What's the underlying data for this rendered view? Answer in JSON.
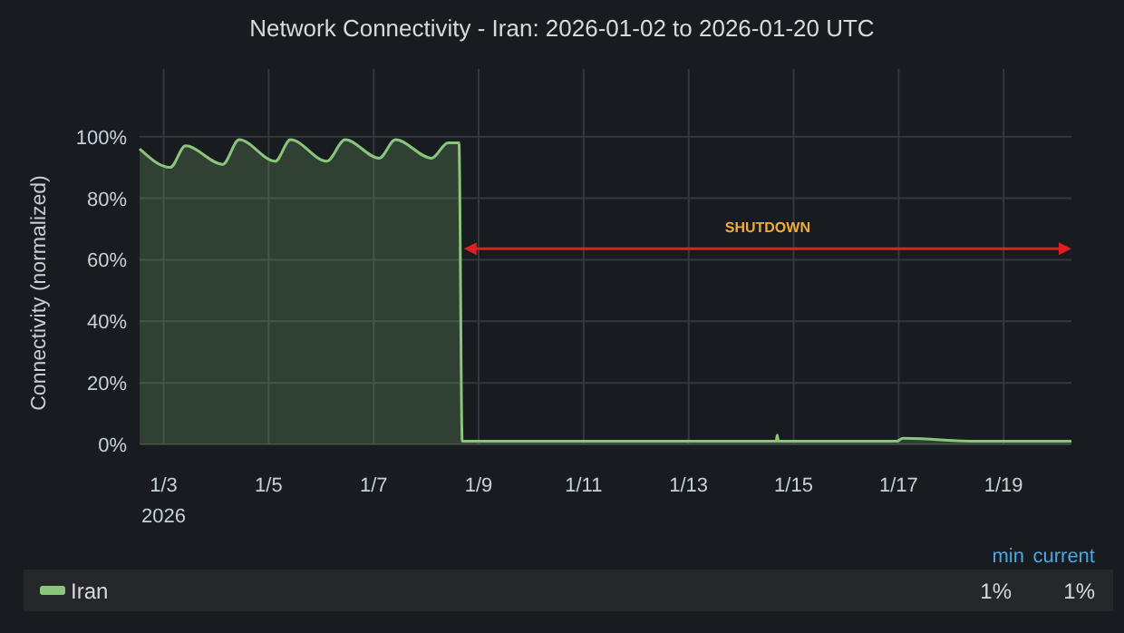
{
  "chart_data": {
    "type": "area",
    "title": "Network Connectivity - Iran: 2026-01-02 to 2026-01-20 UTC",
    "ylabel": "Connectivity (normalized)",
    "x": [
      "2026-01-02T13:00",
      "2026-01-03T03:00",
      "2026-01-03T10:00",
      "2026-01-04T03:00",
      "2026-01-04T10:30",
      "2026-01-05T03:00",
      "2026-01-05T10:00",
      "2026-01-06T02:30",
      "2026-01-06T11:00",
      "2026-01-07T02:30",
      "2026-01-07T10:00",
      "2026-01-08T02:30",
      "2026-01-08T10:00",
      "2026-01-08T15:00",
      "2026-01-08T16:30",
      "2026-01-10T00:00",
      "2026-01-12T00:00",
      "2026-01-14T16:00",
      "2026-01-14T16:30",
      "2026-01-14T17:00",
      "2026-01-16T23:00",
      "2026-01-17T02:00",
      "2026-01-18T12:00",
      "2026-01-19T12:00",
      "2026-01-20T07:00"
    ],
    "series": [
      {
        "name": "Iran",
        "color": "#8ac57c",
        "values": [
          96,
          90,
          97,
          91,
          99,
          92,
          99,
          92,
          99,
          93,
          99,
          93,
          98,
          98,
          1,
          1,
          1,
          1,
          3,
          1,
          1,
          2,
          1,
          1,
          1
        ]
      }
    ],
    "xlim": [
      "2026-01-02T13:00",
      "2026-01-20T07:00"
    ],
    "xticks": [
      {
        "value": "2026-01-03",
        "label": "1/3\n2026"
      },
      {
        "value": "2026-01-05",
        "label": "1/5"
      },
      {
        "value": "2026-01-07",
        "label": "1/7"
      },
      {
        "value": "2026-01-09",
        "label": "1/9"
      },
      {
        "value": "2026-01-11",
        "label": "1/11"
      },
      {
        "value": "2026-01-13",
        "label": "1/13"
      },
      {
        "value": "2026-01-15",
        "label": "1/15"
      },
      {
        "value": "2026-01-17",
        "label": "1/17"
      },
      {
        "value": "2026-01-19",
        "label": "1/19"
      }
    ],
    "ylim": [
      0,
      122
    ],
    "yticks": [
      {
        "value": 0,
        "label": "0%"
      },
      {
        "value": 20,
        "label": "20%"
      },
      {
        "value": 40,
        "label": "40%"
      },
      {
        "value": 60,
        "label": "60%"
      },
      {
        "value": 80,
        "label": "80%"
      },
      {
        "value": 100,
        "label": "100%"
      }
    ],
    "grid": true,
    "legend": "bottom",
    "annotations": [
      "min",
      "current",
      "1%",
      "1%",
      "SHUTDOWN"
    ]
  }
}
